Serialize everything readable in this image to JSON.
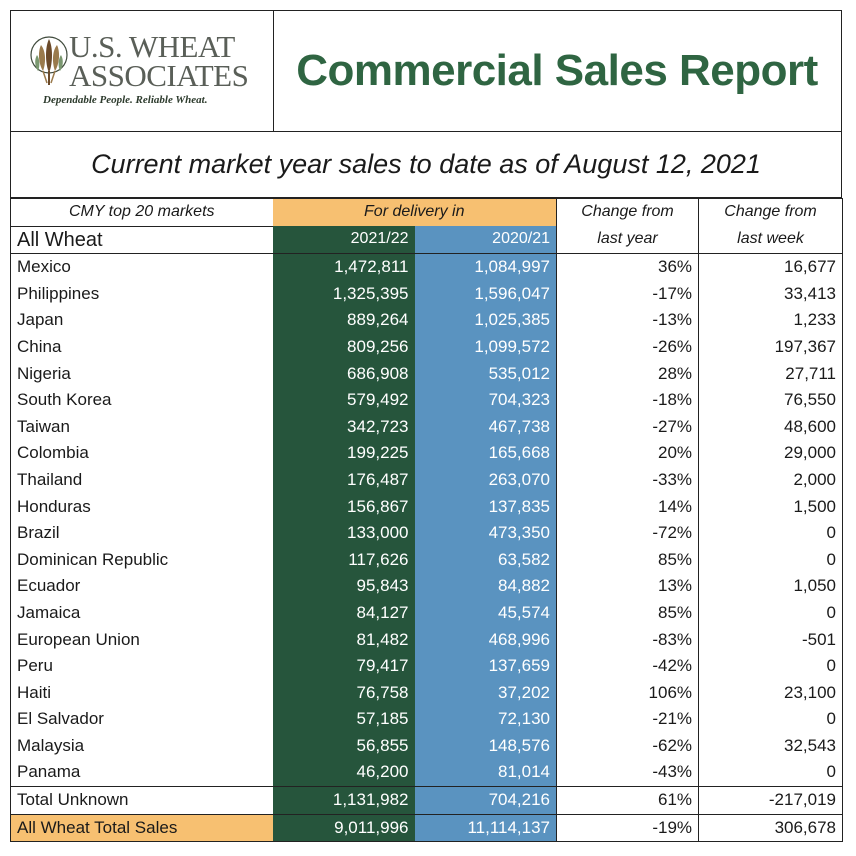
{
  "logo": {
    "line1": "U.S. WHEAT",
    "line2": "ASSOCIATES",
    "tagline": "Dependable People. Reliable Wheat."
  },
  "title": "Commercial Sales Report",
  "subtitle": "Current market year sales to date as of August 12, 2021",
  "headers": {
    "markets": "CMY top 20 markets",
    "all_wheat": "All Wheat",
    "delivery": "For delivery in",
    "year_current": "2021/22",
    "year_prior": "2020/21",
    "change_year_1": "Change from",
    "change_year_2": "last year",
    "change_week_1": "Change from",
    "change_week_2": "last week"
  },
  "rows": [
    {
      "market": "Mexico",
      "y2122": "1,472,811",
      "y2021": "1,084,997",
      "chg_year": "36%",
      "chg_week": "16,677"
    },
    {
      "market": "Philippines",
      "y2122": "1,325,395",
      "y2021": "1,596,047",
      "chg_year": "-17%",
      "chg_week": "33,413"
    },
    {
      "market": "Japan",
      "y2122": "889,264",
      "y2021": "1,025,385",
      "chg_year": "-13%",
      "chg_week": "1,233"
    },
    {
      "market": "China",
      "y2122": "809,256",
      "y2021": "1,099,572",
      "chg_year": "-26%",
      "chg_week": "197,367"
    },
    {
      "market": "Nigeria",
      "y2122": "686,908",
      "y2021": "535,012",
      "chg_year": "28%",
      "chg_week": "27,711"
    },
    {
      "market": "South Korea",
      "y2122": "579,492",
      "y2021": "704,323",
      "chg_year": "-18%",
      "chg_week": "76,550"
    },
    {
      "market": "Taiwan",
      "y2122": "342,723",
      "y2021": "467,738",
      "chg_year": "-27%",
      "chg_week": "48,600"
    },
    {
      "market": "Colombia",
      "y2122": "199,225",
      "y2021": "165,668",
      "chg_year": "20%",
      "chg_week": "29,000"
    },
    {
      "market": "Thailand",
      "y2122": "176,487",
      "y2021": "263,070",
      "chg_year": "-33%",
      "chg_week": "2,000"
    },
    {
      "market": "Honduras",
      "y2122": "156,867",
      "y2021": "137,835",
      "chg_year": "14%",
      "chg_week": "1,500"
    },
    {
      "market": "Brazil",
      "y2122": "133,000",
      "y2021": "473,350",
      "chg_year": "-72%",
      "chg_week": "0"
    },
    {
      "market": "Dominican Republic",
      "y2122": "117,626",
      "y2021": "63,582",
      "chg_year": "85%",
      "chg_week": "0"
    },
    {
      "market": "Ecuador",
      "y2122": "95,843",
      "y2021": "84,882",
      "chg_year": "13%",
      "chg_week": "1,050"
    },
    {
      "market": "Jamaica",
      "y2122": "84,127",
      "y2021": "45,574",
      "chg_year": "85%",
      "chg_week": "0"
    },
    {
      "market": "European Union",
      "y2122": "81,482",
      "y2021": "468,996",
      "chg_year": "-83%",
      "chg_week": "-501"
    },
    {
      "market": "Peru",
      "y2122": "79,417",
      "y2021": "137,659",
      "chg_year": "-42%",
      "chg_week": "0"
    },
    {
      "market": "Haiti",
      "y2122": "76,758",
      "y2021": "37,202",
      "chg_year": "106%",
      "chg_week": "23,100"
    },
    {
      "market": "El Salvador",
      "y2122": "57,185",
      "y2021": "72,130",
      "chg_year": "-21%",
      "chg_week": "0"
    },
    {
      "market": "Malaysia",
      "y2122": "56,855",
      "y2021": "148,576",
      "chg_year": "-62%",
      "chg_week": "32,543"
    },
    {
      "market": "Panama",
      "y2122": "46,200",
      "y2021": "81,014",
      "chg_year": "-43%",
      "chg_week": "0"
    }
  ],
  "unknown": {
    "market": "Total Unknown",
    "y2122": "1,131,982",
    "y2021": "704,216",
    "chg_year": "61%",
    "chg_week": "-217,019"
  },
  "total": {
    "market": "All Wheat Total Sales",
    "y2122": "9,011,996",
    "y2021": "11,114,137",
    "chg_year": "-19%",
    "chg_week": "306,678"
  },
  "colors": {
    "title_green": "#2f6542",
    "dark_green": "#26553c",
    "blue": "#5a93c0",
    "orange": "#f7c071"
  }
}
